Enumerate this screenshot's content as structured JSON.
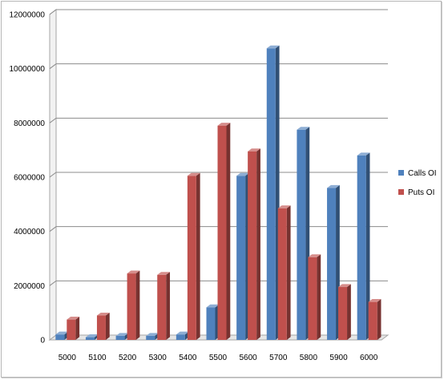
{
  "chart_data": {
    "type": "bar",
    "title": "",
    "xlabel": "",
    "ylabel": "",
    "categories": [
      "5000",
      "5100",
      "5200",
      "5300",
      "5400",
      "5500",
      "5600",
      "5700",
      "5800",
      "5900",
      "6000"
    ],
    "series": [
      {
        "name": "Calls OI",
        "color": "#4f81bd",
        "values": [
          200000,
          100000,
          150000,
          150000,
          200000,
          1200000,
          6050000,
          10750000,
          7750000,
          5600000,
          6800000
        ]
      },
      {
        "name": "Puts OI",
        "color": "#c0504d",
        "values": [
          750000,
          900000,
          2450000,
          2400000,
          6050000,
          7900000,
          6950000,
          4850000,
          3050000,
          1950000,
          1400000
        ]
      }
    ],
    "ylim": [
      0,
      12000000
    ],
    "yticks": [
      "0",
      "2000000",
      "4000000",
      "6000000",
      "8000000",
      "10000000",
      "12000000"
    ],
    "grid": true,
    "legend_position": "right",
    "style": "3d-clustered-column"
  }
}
